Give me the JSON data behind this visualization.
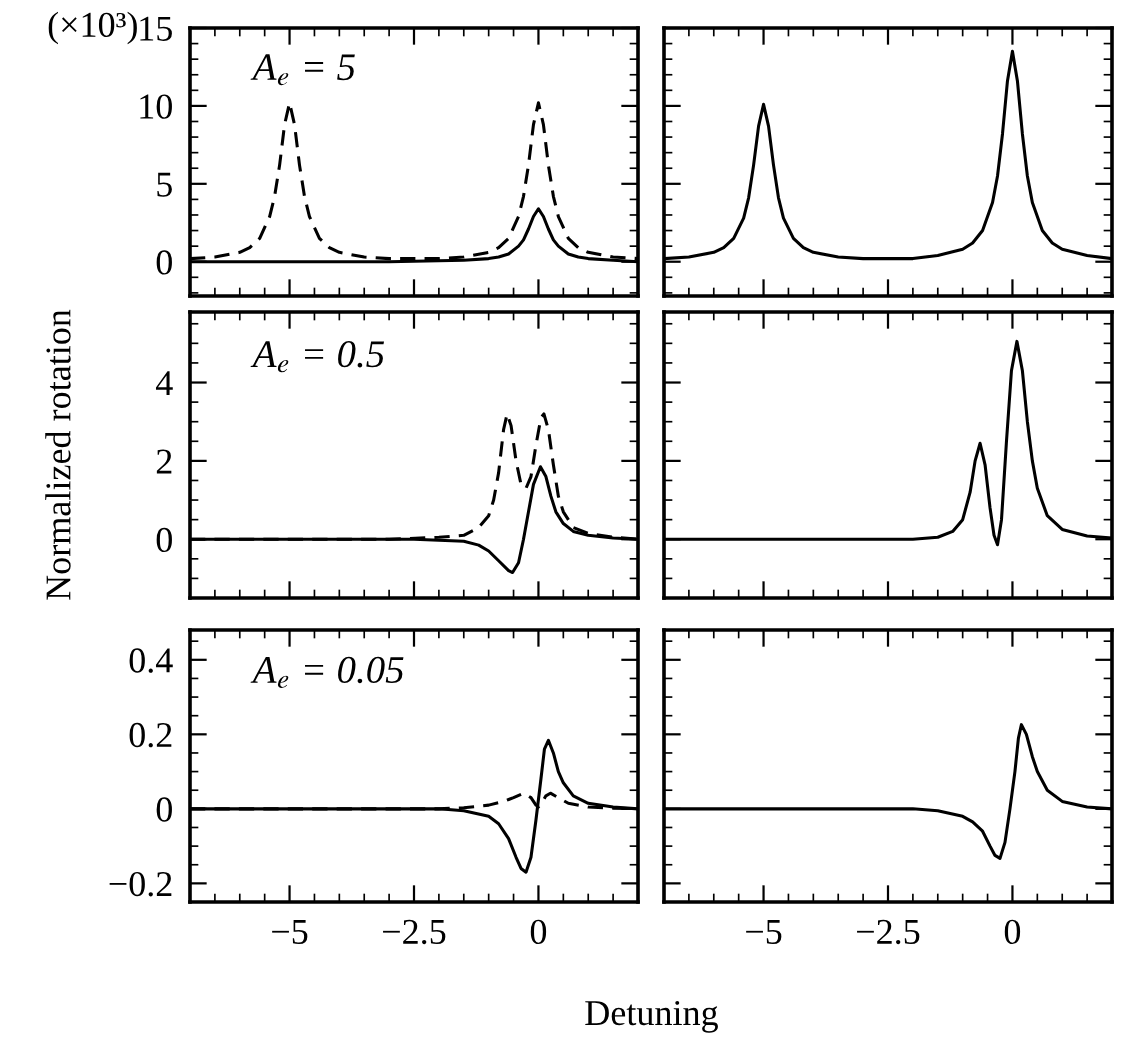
{
  "chart_data": [
    {
      "type": "line",
      "xlim": [
        -7,
        2
      ],
      "xticks": [
        -5,
        -2.5,
        0
      ],
      "ylim": [
        -2.2,
        15
      ],
      "yticks": [
        0,
        5,
        10,
        15
      ],
      "tick_labels": "y",
      "annotations": [
        "(×10³)",
        "A$_{e}$ = 5"
      ],
      "series": [
        {
          "color": "#000000",
          "line_style": "dashed",
          "x": [
            -7,
            -6.5,
            -6,
            -5.8,
            -5.6,
            -5.4,
            -5.3,
            -5.2,
            -5.1,
            -5,
            -4.9,
            -4.8,
            -4.7,
            -4.6,
            -4.4,
            -4.2,
            -4,
            -3.5,
            -3,
            -2.5,
            -2,
            -1.5,
            -1,
            -0.8,
            -0.6,
            -0.4,
            -0.3,
            -0.2,
            -0.1,
            0,
            0.1,
            0.2,
            0.3,
            0.4,
            0.6,
            0.8,
            1,
            1.5,
            2
          ],
          "values": [
            0.2,
            0.3,
            0.6,
            0.9,
            1.5,
            2.9,
            4.2,
            6.2,
            8.8,
            10.2,
            8.8,
            6.2,
            4.2,
            2.9,
            1.5,
            0.9,
            0.6,
            0.3,
            0.2,
            0.2,
            0.2,
            0.3,
            0.6,
            0.9,
            1.5,
            2.9,
            4.2,
            6.2,
            8.8,
            10.2,
            8.8,
            6.2,
            4.2,
            2.9,
            1.5,
            0.9,
            0.6,
            0.3,
            0.2
          ]
        },
        {
          "color": "#000000",
          "line_style": "solid",
          "x": [
            -7,
            -3,
            -1.5,
            -1,
            -0.8,
            -0.6,
            -0.4,
            -0.3,
            -0.2,
            -0.1,
            0,
            0.1,
            0.2,
            0.3,
            0.4,
            0.6,
            0.8,
            1,
            1.5,
            2
          ],
          "values": [
            0,
            0,
            0.1,
            0.2,
            0.3,
            0.5,
            1,
            1.4,
            2.1,
            2.9,
            3.4,
            2.9,
            2.1,
            1.4,
            1,
            0.5,
            0.3,
            0.2,
            0.1,
            0
          ]
        }
      ]
    },
    {
      "type": "line",
      "xlim": [
        -7,
        2
      ],
      "xticks": [
        -5,
        -2.5,
        0
      ],
      "ylim": [
        -2.2,
        15
      ],
      "yticks": [
        0,
        5,
        10,
        15
      ],
      "tick_labels": false,
      "series": [
        {
          "color": "#000000",
          "line_style": "solid",
          "x": [
            -7,
            -6.5,
            -6,
            -5.8,
            -5.6,
            -5.4,
            -5.3,
            -5.2,
            -5.1,
            -5,
            -4.9,
            -4.8,
            -4.7,
            -4.6,
            -4.4,
            -4.2,
            -4,
            -3.5,
            -3,
            -2.5,
            -2,
            -1.5,
            -1,
            -0.8,
            -0.6,
            -0.4,
            -0.3,
            -0.2,
            -0.1,
            0,
            0.1,
            0.2,
            0.3,
            0.4,
            0.6,
            0.8,
            1,
            1.5,
            2
          ],
          "values": [
            0.2,
            0.3,
            0.6,
            0.9,
            1.5,
            2.8,
            4.1,
            6.2,
            8.7,
            10.1,
            8.7,
            6.2,
            4.1,
            2.8,
            1.5,
            0.9,
            0.6,
            0.3,
            0.2,
            0.2,
            0.2,
            0.4,
            0.8,
            1.2,
            2,
            3.8,
            5.5,
            8.2,
            11.6,
            13.5,
            11.6,
            8.2,
            5.5,
            3.8,
            2,
            1.2,
            0.8,
            0.4,
            0.2
          ]
        }
      ]
    },
    {
      "type": "line",
      "xlim": [
        -7,
        2
      ],
      "xticks": [
        -5,
        -2.5,
        0
      ],
      "ylim": [
        -1.5,
        5.8
      ],
      "yticks": [
        0,
        2,
        4
      ],
      "tick_labels": "y",
      "ylabel": "Normalized rotation",
      "annotations": [
        "A$_{e}$ = 0.5"
      ],
      "series": [
        {
          "color": "#000000",
          "line_style": "dashed",
          "x": [
            -7,
            -3,
            -2,
            -1.5,
            -1.2,
            -1,
            -0.9,
            -0.8,
            -0.7,
            -0.63,
            -0.55,
            -0.45,
            -0.35,
            -0.25,
            -0.15,
            -0.05,
            0.05,
            0.11,
            0.2,
            0.3,
            0.4,
            0.5,
            0.7,
            1,
            1.5,
            2
          ],
          "values": [
            0,
            0,
            0.05,
            0.1,
            0.3,
            0.6,
            1,
            1.7,
            2.8,
            3.2,
            2.9,
            2,
            1.4,
            1.3,
            1.6,
            2.4,
            3.1,
            3.2,
            2.8,
            1.9,
            1.1,
            0.7,
            0.3,
            0.15,
            0.05,
            0
          ]
        },
        {
          "color": "#000000",
          "line_style": "solid",
          "x": [
            -7,
            -2.5,
            -1.5,
            -1.2,
            -1,
            -0.8,
            -0.6,
            -0.52,
            -0.4,
            -0.3,
            -0.2,
            -0.1,
            0.04,
            0.15,
            0.25,
            0.35,
            0.5,
            0.7,
            1,
            1.5,
            2
          ],
          "values": [
            0,
            0,
            -0.05,
            -0.15,
            -0.3,
            -0.55,
            -0.8,
            -0.85,
            -0.6,
            0,
            0.7,
            1.4,
            1.85,
            1.6,
            1.1,
            0.7,
            0.4,
            0.2,
            0.1,
            0.03,
            0
          ]
        }
      ]
    },
    {
      "type": "line",
      "xlim": [
        -7,
        2
      ],
      "xticks": [
        -5,
        -2.5,
        0
      ],
      "ylim": [
        -1.5,
        5.8
      ],
      "yticks": [
        0,
        2,
        4
      ],
      "tick_labels": false,
      "series": [
        {
          "color": "#000000",
          "line_style": "solid",
          "x": [
            -7,
            -2,
            -1.5,
            -1.2,
            -1,
            -0.85,
            -0.75,
            -0.65,
            -0.55,
            -0.45,
            -0.37,
            -0.3,
            -0.22,
            -0.12,
            -0.02,
            0.09,
            0.2,
            0.3,
            0.4,
            0.5,
            0.7,
            1,
            1.5,
            2
          ],
          "values": [
            0,
            0,
            0.05,
            0.2,
            0.5,
            1.2,
            2,
            2.45,
            1.9,
            0.8,
            0.1,
            -0.14,
            0.5,
            2.5,
            4.3,
            5.05,
            4.3,
            3,
            2,
            1.3,
            0.6,
            0.25,
            0.08,
            0.03
          ]
        }
      ]
    },
    {
      "type": "line",
      "xlim": [
        -7,
        2
      ],
      "xticks": [
        -5,
        -2.5,
        0
      ],
      "ylim": [
        -0.25,
        0.48
      ],
      "yticks": [
        -0.2,
        0,
        0.2,
        0.4
      ],
      "xlabel": "Detuning",
      "annotations": [
        "A$_{e}$ = 0.05"
      ],
      "series": [
        {
          "color": "#000000",
          "line_style": "dashed",
          "x": [
            -7,
            -2,
            -1.5,
            -1,
            -0.7,
            -0.5,
            -0.3,
            -0.15,
            -0.05,
            0,
            0.05,
            0.15,
            0.24,
            0.4,
            0.6,
            1,
            1.5,
            2
          ],
          "values": [
            0,
            0,
            0.003,
            0.01,
            0.02,
            0.03,
            0.042,
            0.03,
            0.01,
            0.005,
            0.012,
            0.035,
            0.042,
            0.03,
            0.015,
            0.005,
            0.002,
            0
          ]
        },
        {
          "color": "#000000",
          "line_style": "solid",
          "x": [
            -7,
            -2,
            -1.5,
            -1,
            -0.8,
            -0.6,
            -0.45,
            -0.35,
            -0.25,
            -0.15,
            -0.05,
            0.05,
            0.12,
            0.2,
            0.3,
            0.4,
            0.5,
            0.7,
            1,
            1.5,
            2
          ],
          "values": [
            0,
            0,
            -0.005,
            -0.02,
            -0.04,
            -0.08,
            -0.13,
            -0.16,
            -0.17,
            -0.13,
            -0.03,
            0.08,
            0.16,
            0.184,
            0.15,
            0.1,
            0.07,
            0.035,
            0.015,
            0.005,
            0
          ]
        }
      ]
    },
    {
      "type": "line",
      "xlim": [
        -7,
        2
      ],
      "xticks": [
        -5,
        -2.5,
        0
      ],
      "ylim": [
        -0.25,
        0.48
      ],
      "yticks": [
        -0.2,
        0,
        0.2,
        0.4
      ],
      "tick_labels": "x",
      "series": [
        {
          "color": "#000000",
          "line_style": "solid",
          "x": [
            -7,
            -2,
            -1.5,
            -1,
            -0.8,
            -0.6,
            -0.45,
            -0.35,
            -0.25,
            -0.15,
            -0.05,
            0.05,
            0.12,
            0.18,
            0.28,
            0.4,
            0.5,
            0.7,
            1,
            1.5,
            2
          ],
          "values": [
            0,
            0,
            -0.005,
            -0.02,
            -0.035,
            -0.06,
            -0.1,
            -0.125,
            -0.133,
            -0.09,
            0,
            0.1,
            0.19,
            0.226,
            0.2,
            0.14,
            0.1,
            0.05,
            0.02,
            0.005,
            0
          ]
        }
      ]
    }
  ]
}
